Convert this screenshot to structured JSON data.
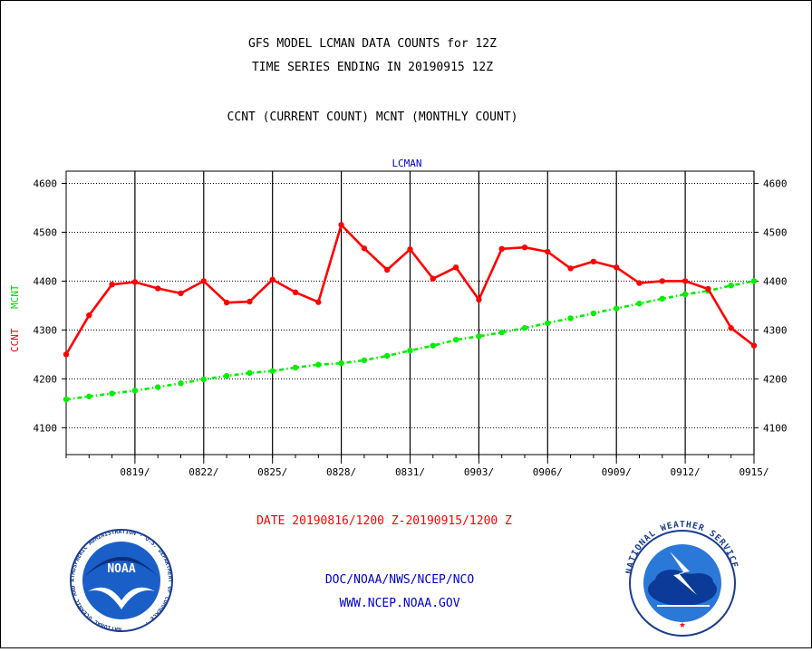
{
  "header": {
    "title_line1": "GFS MODEL LCMAN DATA COUNTS for 12Z",
    "title_line2": "TIME SERIES ENDING IN 20190915 12Z",
    "subtitle": "CCNT (CURRENT COUNT) MCNT (MONTHLY COUNT)"
  },
  "footer": {
    "date_range": "DATE 20190816/1200 Z-20190915/1200 Z",
    "org": "DOC/NOAA/NWS/NCEP/NCO",
    "url": "WWW.NCEP.NOAA.GOV"
  },
  "logos": {
    "noaa": {
      "text": "NOAA",
      "ring_text": "NATIONAL OCEANIC AND ATMOSPHERIC ADMINISTRATION · U.S. DEPARTMENT OF COMMERCE ·"
    },
    "nws": {
      "ring_text": "NATIONAL WEATHER SERVICE"
    }
  },
  "colors": {
    "ccnt": "#ff0000",
    "mcnt": "#00ee00",
    "header_text": "#000000",
    "plot_label": "#0000cc",
    "footer_red": "#ff0000",
    "footer_blue": "#0000cc"
  },
  "chart_data": {
    "type": "line",
    "plot_title": "LCMAN",
    "ylabel_ccnt": "CCNT",
    "ylabel_mcnt": "MCNT",
    "y_ticks": [
      4100,
      4200,
      4300,
      4400,
      4500,
      4600
    ],
    "ylim": [
      4045,
      4625
    ],
    "x_tick_labels": [
      "0819/",
      "0822/",
      "0825/",
      "0828/",
      "0831/",
      "0903/",
      "0906/",
      "0909/",
      "0912/",
      "0915/"
    ],
    "x_tick_days": [
      3,
      6,
      9,
      12,
      15,
      18,
      21,
      24,
      27,
      30
    ],
    "x_range_days": [
      0,
      30
    ],
    "grid": true,
    "series": [
      {
        "name": "CCNT",
        "x": [
          0,
          1,
          2,
          3,
          4,
          5,
          6,
          7,
          8,
          9,
          10,
          11,
          12,
          13,
          14,
          15,
          16,
          17,
          18,
          19,
          20,
          21,
          22,
          23,
          24,
          25,
          26,
          27,
          28,
          29,
          30
        ],
        "values": [
          4250,
          4330,
          4393,
          4398,
          4385,
          4375,
          4400,
          4356,
          4358,
          4403,
          4377,
          4357,
          4515,
          4467,
          4423,
          4465,
          4405,
          4428,
          4362,
          4466,
          4469,
          4460,
          4426,
          4440,
          4428,
          4396,
          4400,
          4400,
          4384,
          4304,
          4268
        ]
      },
      {
        "name": "MCNT",
        "x": [
          0,
          1,
          2,
          3,
          4,
          5,
          6,
          7,
          8,
          9,
          10,
          11,
          12,
          13,
          14,
          15,
          16,
          17,
          18,
          19,
          20,
          21,
          22,
          23,
          24,
          25,
          26,
          27,
          28,
          29,
          30
        ],
        "values": [
          4158,
          4164,
          4170,
          4176,
          4183,
          4191,
          4199,
          4206,
          4212,
          4216,
          4223,
          4229,
          4232,
          4238,
          4247,
          4258,
          4268,
          4280,
          4287,
          4295,
          4304,
          4314,
          4324,
          4334,
          4344,
          4354,
          4364,
          4373,
          4380,
          4391,
          4400
        ]
      }
    ]
  }
}
